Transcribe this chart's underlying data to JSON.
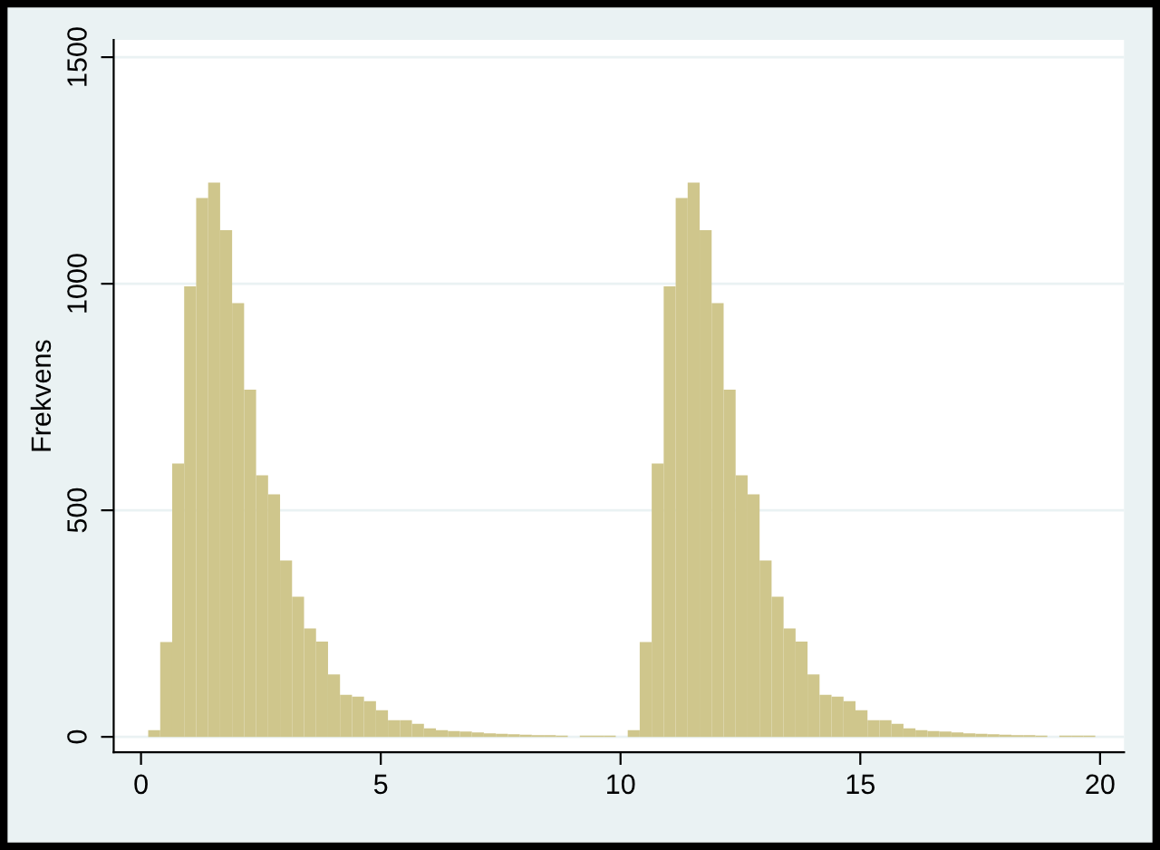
{
  "chart_data": {
    "type": "histogram",
    "ylabel": "Frekvens",
    "bins": [
      0.15,
      0.4,
      0.65,
      0.9,
      1.15,
      1.4,
      1.65,
      1.9,
      2.15,
      2.4,
      2.65,
      2.9,
      3.15,
      3.4,
      3.65,
      3.9,
      4.15,
      4.4,
      4.65,
      4.9,
      5.15,
      5.4,
      5.65,
      5.9,
      6.15,
      6.4,
      6.65,
      6.9,
      7.15,
      7.4,
      7.65,
      7.9,
      8.15,
      8.4,
      8.65,
      8.9,
      9.15,
      9.4,
      9.65,
      9.9,
      10.15,
      10.4,
      10.65,
      10.9,
      11.15,
      11.4,
      11.65,
      11.9,
      12.15,
      12.4,
      12.65,
      12.9,
      13.15,
      13.4,
      13.65,
      13.9,
      14.15,
      14.4,
      14.65,
      14.9,
      15.15,
      15.4,
      15.65,
      15.9,
      16.15,
      16.4,
      16.65,
      16.9,
      17.15,
      17.4,
      17.65,
      17.9,
      18.15,
      18.4,
      18.65,
      18.9,
      19.15,
      19.4,
      19.65,
      19.9,
      20.15
    ],
    "values": [
      15,
      209,
      603,
      994,
      1189,
      1223,
      1118,
      957,
      766,
      577,
      535,
      389,
      309,
      239,
      210,
      138,
      93,
      89,
      79,
      59,
      37,
      37,
      29,
      19,
      15,
      13,
      12,
      10,
      8,
      7,
      6,
      5,
      4,
      4,
      3,
      0,
      3,
      3,
      3,
      0,
      15,
      209,
      603,
      994,
      1189,
      1223,
      1118,
      957,
      766,
      577,
      535,
      389,
      309,
      239,
      210,
      138,
      93,
      89,
      79,
      59,
      37,
      37,
      29,
      19,
      15,
      13,
      12,
      10,
      8,
      7,
      6,
      5,
      4,
      4,
      3,
      0,
      3,
      3,
      3,
      0
    ],
    "color": "#cfc68c",
    "xlim": [
      -0.57,
      20.5
    ],
    "ylim": [
      -34,
      1538
    ],
    "xticks": [
      0,
      5,
      10,
      15,
      20
    ],
    "yticks": [
      0,
      500,
      1000,
      1500
    ],
    "grid": "y"
  }
}
